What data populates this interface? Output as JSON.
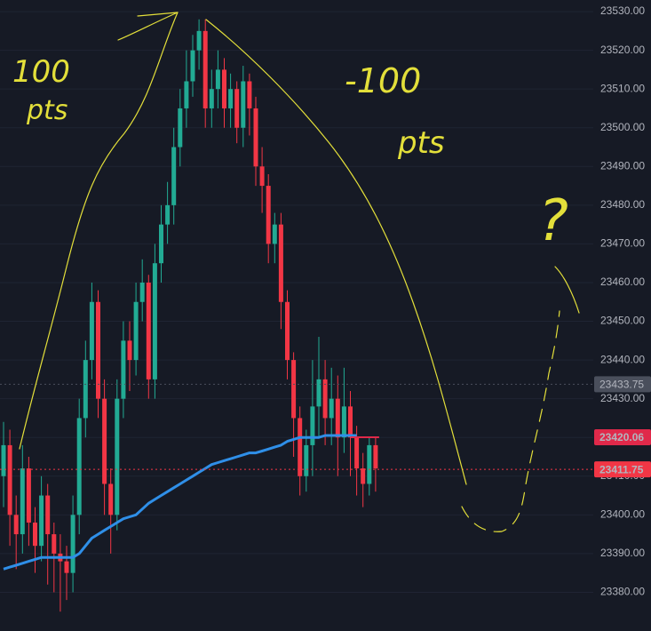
{
  "chart_data": {
    "type": "candlestick",
    "up_color": "#22ab94",
    "down_color": "#f23645",
    "ylim": [
      23370,
      23533
    ],
    "yticks": [
      {
        "value": 23380,
        "label": "23380.00"
      },
      {
        "value": 23390,
        "label": "23390.00"
      },
      {
        "value": 23400,
        "label": "23400.00"
      },
      {
        "value": 23410,
        "label": "23410.00"
      },
      {
        "value": 23420,
        "label": "23420.00"
      },
      {
        "value": 23430,
        "label": "23430.00"
      },
      {
        "value": 23440,
        "label": "23440.00"
      },
      {
        "value": 23450,
        "label": "23450.00"
      },
      {
        "value": 23460,
        "label": "23460.00"
      },
      {
        "value": 23470,
        "label": "23470.00"
      },
      {
        "value": 23480,
        "label": "23480.00"
      },
      {
        "value": 23490,
        "label": "23490.00"
      },
      {
        "value": 23500,
        "label": "23500.00"
      },
      {
        "value": 23510,
        "label": "23510.00"
      },
      {
        "value": 23520,
        "label": "23520.00"
      },
      {
        "value": 23530,
        "label": "23530.00"
      }
    ],
    "grid": true,
    "open": [
      23410,
      23418,
      23400,
      23395,
      23412,
      23398,
      23392,
      23405,
      23395,
      23390,
      23388,
      23385,
      23400,
      23425,
      23440,
      23455,
      23430,
      23408,
      23400,
      23430,
      23445,
      23440,
      23455,
      23460,
      23435,
      23465,
      23475,
      23480,
      23495,
      23505,
      23512,
      23520,
      23525,
      23505,
      23510,
      23515,
      23505,
      23510,
      23500,
      23512,
      23505,
      23490,
      23485,
      23470,
      23475,
      23455,
      23440,
      23425,
      23410,
      23418,
      23428,
      23435,
      23425,
      23430,
      23420,
      23428,
      23420,
      23412,
      23408,
      23418
    ],
    "high": [
      23424,
      23422,
      23405,
      23418,
      23415,
      23402,
      23410,
      23408,
      23398,
      23395,
      23392,
      23405,
      23430,
      23445,
      23460,
      23458,
      23435,
      23412,
      23435,
      23450,
      23450,
      23460,
      23466,
      23462,
      23470,
      23480,
      23486,
      23500,
      23510,
      23520,
      23524,
      23528,
      23528,
      23515,
      23520,
      23518,
      23514,
      23512,
      23516,
      23514,
      23508,
      23495,
      23488,
      23478,
      23478,
      23458,
      23442,
      23428,
      23422,
      23440,
      23446,
      23440,
      23438,
      23436,
      23438,
      23432,
      23423,
      23416,
      23420,
      23420
    ],
    "low": [
      23402,
      23392,
      23386,
      23390,
      23392,
      23385,
      23388,
      23382,
      23380,
      23375,
      23378,
      23380,
      23395,
      23420,
      23435,
      23425,
      23400,
      23390,
      23396,
      23425,
      23432,
      23436,
      23450,
      23430,
      23430,
      23460,
      23470,
      23475,
      23490,
      23500,
      23508,
      23515,
      23500,
      23500,
      23505,
      23500,
      23500,
      23496,
      23495,
      23498,
      23485,
      23478,
      23465,
      23465,
      23448,
      23435,
      23415,
      23405,
      23406,
      23410,
      23420,
      23418,
      23418,
      23410,
      23416,
      23410,
      23405,
      23402,
      23405,
      23406
    ],
    "close": [
      23418,
      23400,
      23395,
      23412,
      23398,
      23392,
      23405,
      23395,
      23390,
      23388,
      23385,
      23400,
      23425,
      23440,
      23455,
      23430,
      23408,
      23400,
      23430,
      23445,
      23440,
      23455,
      23460,
      23435,
      23465,
      23475,
      23480,
      23495,
      23505,
      23512,
      23520,
      23525,
      23505,
      23510,
      23515,
      23505,
      23510,
      23500,
      23512,
      23505,
      23490,
      23485,
      23470,
      23475,
      23455,
      23440,
      23425,
      23410,
      23418,
      23428,
      23435,
      23425,
      23430,
      23420,
      23428,
      23420,
      23412,
      23408,
      23418,
      23412
    ],
    "ma": {
      "color": "#2f8fe8",
      "values": [
        23386,
        23386.5,
        23387,
        23387.5,
        23388,
        23388.5,
        23389,
        23389,
        23389,
        23389,
        23389,
        23389,
        23390,
        23392,
        23394,
        23395,
        23396,
        23397,
        23398,
        23399,
        23399.5,
        23400,
        23401.5,
        23403,
        23404,
        23405,
        23406,
        23407,
        23408,
        23409,
        23410,
        23411,
        23412,
        23413,
        23413.5,
        23414,
        23414.5,
        23415,
        23415.5,
        23416,
        23416,
        23416.5,
        23417,
        23417.5,
        23418,
        23419,
        23419.5,
        23420,
        23420,
        23420,
        23420,
        23420.5,
        23420.5,
        23420.5,
        23420.5,
        23420.5,
        23420.5,
        null,
        null,
        null
      ]
    },
    "price_lines": [
      {
        "value": 23433.75,
        "color": "#4a4f5c",
        "line": "dotted"
      },
      {
        "value": 23420.06,
        "color": "#e0294a",
        "line": "segment"
      },
      {
        "value": 23411.75,
        "color": "#f23645",
        "line": "dotted"
      }
    ],
    "annotations": [
      "100",
      "pts",
      "-100",
      "pts",
      "?"
    ]
  }
}
